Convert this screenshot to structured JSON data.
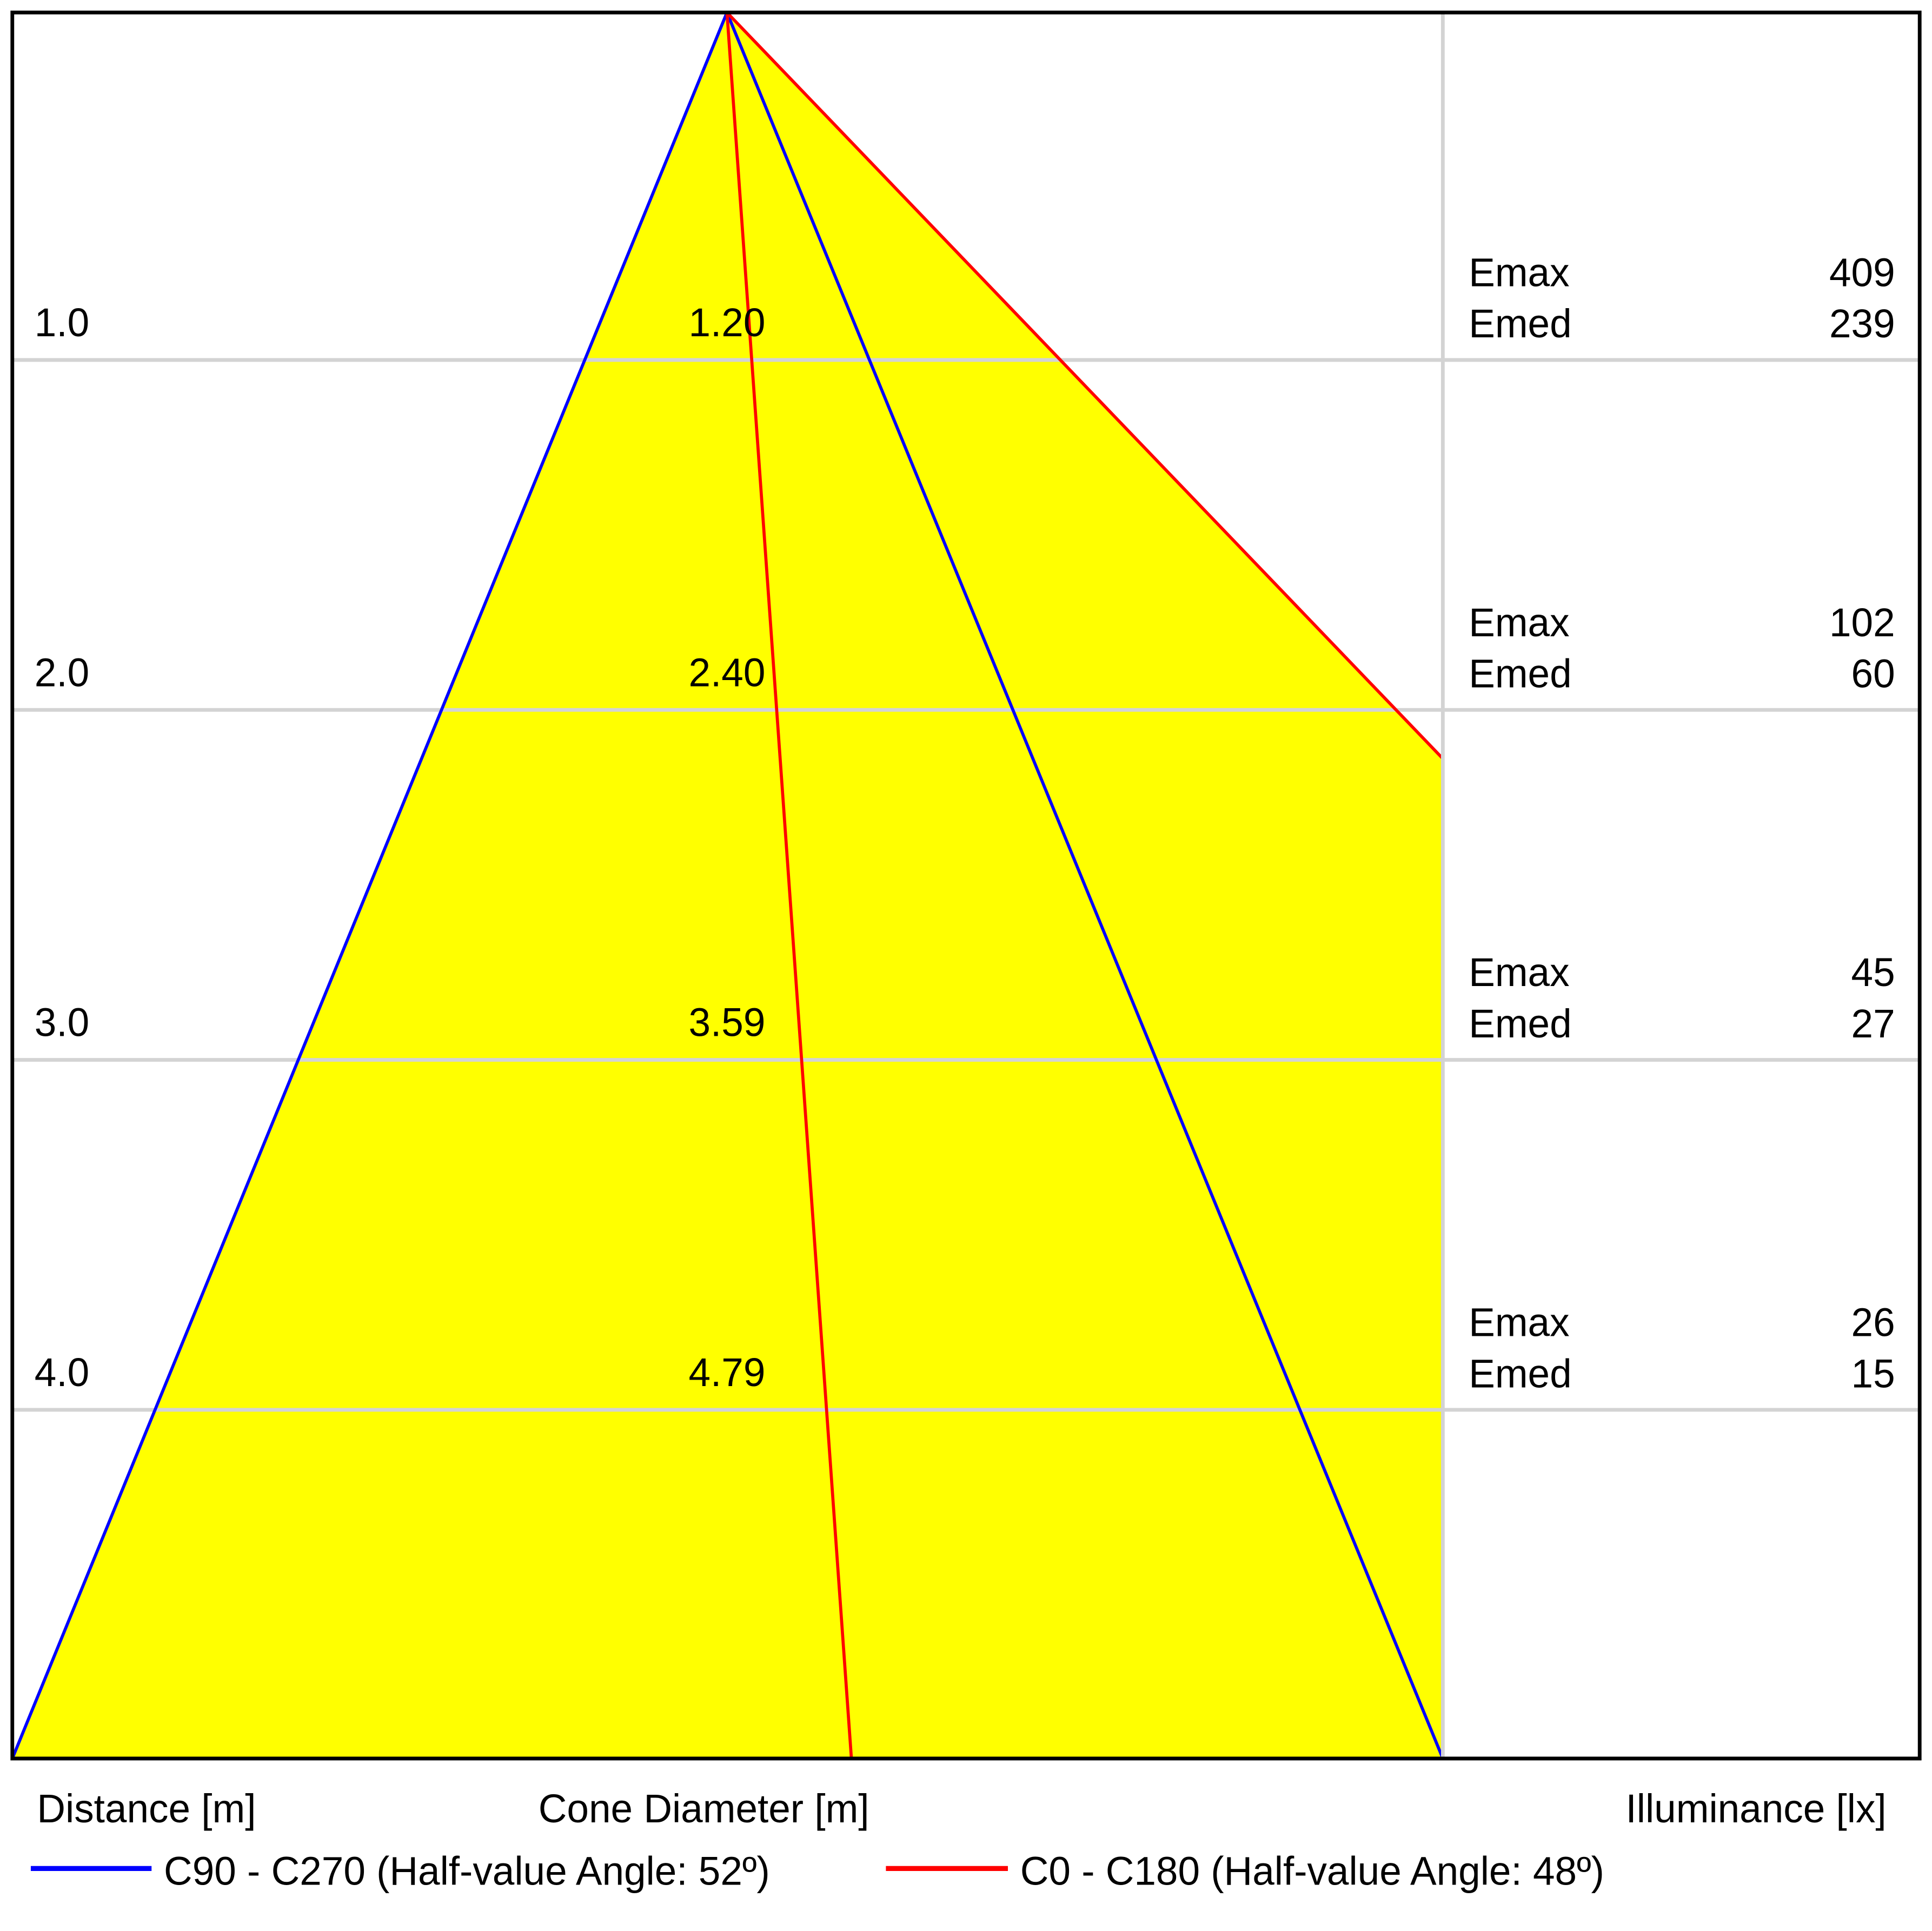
{
  "chart_data": {
    "type": "area",
    "title": "",
    "xlabel_distance": "Distance [m]",
    "xlabel_cone": "Cone Diameter [m]",
    "xlabel_illuminance": "Illuminance [lx]",
    "rows": [
      {
        "distance": "1.0",
        "diameter": "1.20",
        "emax_label": "Emax",
        "emax": "409",
        "emed_label": "Emed",
        "emed": "239"
      },
      {
        "distance": "2.0",
        "diameter": "2.40",
        "emax_label": "Emax",
        "emax": "102",
        "emed_label": "Emed",
        "emed": "60"
      },
      {
        "distance": "3.0",
        "diameter": "3.59",
        "emax_label": "Emax",
        "emax": "45",
        "emed_label": "Emed",
        "emed": "27"
      },
      {
        "distance": "4.0",
        "diameter": "4.79",
        "emax_label": "Emax",
        "emax": "26",
        "emed_label": "Emed",
        "emed": "15"
      }
    ],
    "series": [
      {
        "name": "C90 - C270 (Half-value Angle: 52º)",
        "half_angle_deg": 52,
        "color": "#0000ff"
      },
      {
        "name": "C0 - C180 (Half-value Angle: 48º)",
        "half_angle_deg": 48,
        "color": "#ff0000"
      }
    ],
    "fill_color": "#ffff00",
    "grid_color": "#d3d3d3",
    "grid": true,
    "legend_placement": "bottom"
  }
}
